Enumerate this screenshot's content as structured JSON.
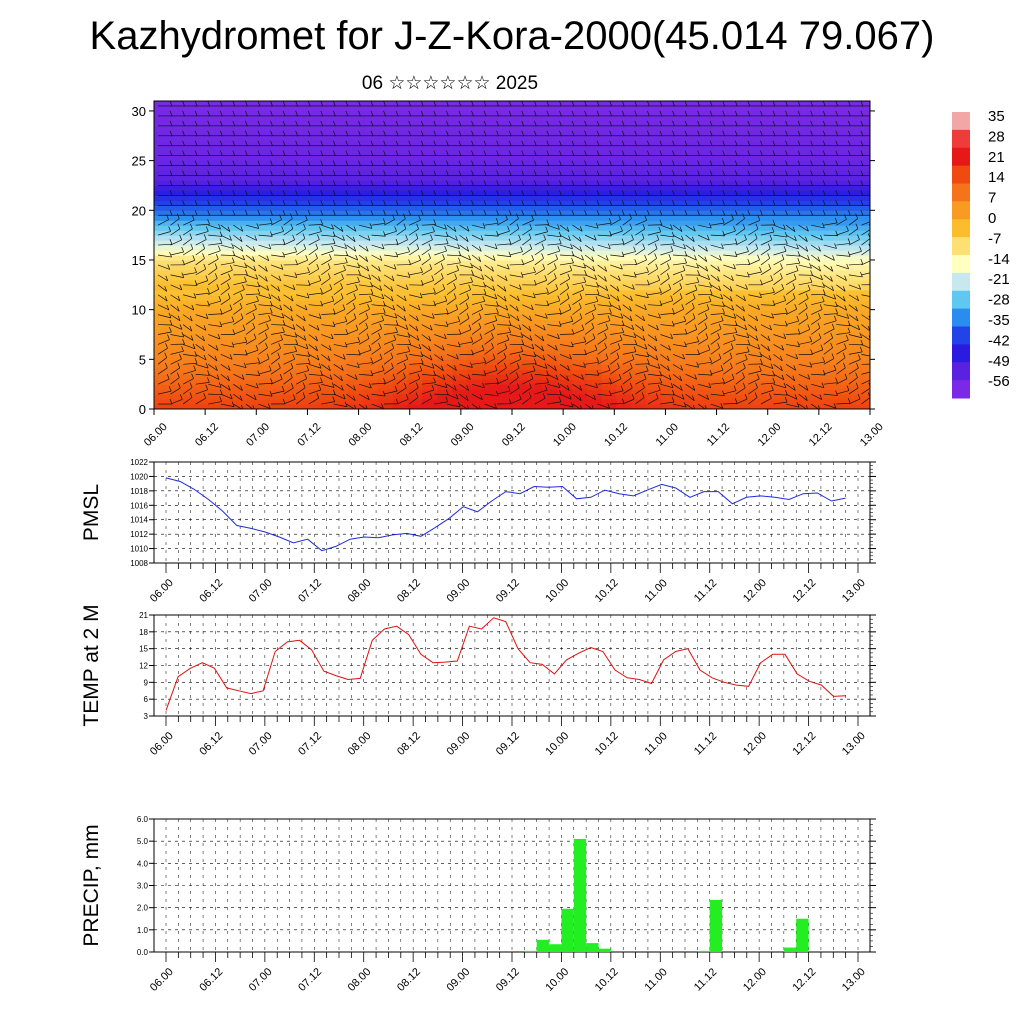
{
  "title": "Kazhydromet for J-Z-Kora-2000(45.014 79.067)",
  "subtitle": "06 ☆☆☆☆☆☆ 2025",
  "chart_data": [
    {
      "type": "heatmap",
      "title": "Kazhydromet for J-Z-Kora-2000(45.014 79.067)",
      "subtitle": "06 ☆☆☆☆☆☆ 2025",
      "x_ticks": [
        "06.00",
        "06.12",
        "07.00",
        "07.12",
        "08.00",
        "08.12",
        "09.00",
        "09.12",
        "10.00",
        "10.12",
        "11.00",
        "11.12",
        "12.00",
        "12.12",
        "13.00"
      ],
      "y_ticks": [
        0,
        5,
        10,
        15,
        20,
        25,
        30
      ],
      "ylim": [
        0,
        31
      ],
      "colorbar_labels": [
        35,
        28,
        21,
        14,
        7,
        0,
        -7,
        -14,
        -21,
        -28,
        -35,
        -42,
        -49,
        -56
      ],
      "colorbar_colors": [
        "#f2a6a6",
        "#f03b3b",
        "#e61818",
        "#f04a10",
        "#f5731a",
        "#f99a22",
        "#fbbd2c",
        "#fde074",
        "#ffffc0",
        "#c8e8f0",
        "#5ec8f0",
        "#2a8cf0",
        "#2244e6",
        "#2b1be0",
        "#5a22e0",
        "#7a2ae6"
      ],
      "profile": [
        {
          "height": 0,
          "temp": 14
        },
        {
          "height": 5,
          "temp": 7
        },
        {
          "height": 10,
          "temp": 2
        },
        {
          "height": 15,
          "temp": -8
        },
        {
          "height": 18,
          "temp": -22
        },
        {
          "height": 21,
          "temp": -40
        },
        {
          "height": 23,
          "temp": -52
        },
        {
          "height": 25,
          "temp": -56
        },
        {
          "height": 28,
          "temp": -58
        },
        {
          "height": 31,
          "temp": -60
        }
      ],
      "wind_barbs": true
    },
    {
      "type": "line",
      "ylabel": "PMSL",
      "ylim": [
        1008,
        1022
      ],
      "y_ticks": [
        1008,
        1010,
        1012,
        1014,
        1016,
        1018,
        1020,
        1022
      ],
      "x_ticks": [
        "06.00",
        "06.12",
        "07.00",
        "07.12",
        "08.00",
        "08.12",
        "09.00",
        "09.12",
        "10.00",
        "10.12",
        "11.00",
        "11.12",
        "12.00",
        "12.12",
        "13.00"
      ],
      "color": "#1f2be0",
      "values": [
        1019.8,
        1019.3,
        1018.2,
        1016.8,
        1015.2,
        1013.2,
        1012.8,
        1012.3,
        1011.6,
        1010.8,
        1011.3,
        1009.7,
        1010.3,
        1011.3,
        1011.6,
        1011.5,
        1011.9,
        1012.1,
        1011.7,
        1012.9,
        1014.2,
        1015.8,
        1015.1,
        1016.6,
        1017.9,
        1017.6,
        1018.6,
        1018.5,
        1018.6,
        1016.9,
        1017.1,
        1018.1,
        1017.6,
        1017.3,
        1018.1,
        1018.9,
        1018.4,
        1017.1,
        1017.9,
        1017.9,
        1016.2,
        1017.1,
        1017.3,
        1017.1,
        1016.8,
        1017.6,
        1017.7,
        1016.6,
        1017.0
      ]
    },
    {
      "type": "line",
      "ylabel": "TEMP at 2 M",
      "ylim": [
        3,
        21
      ],
      "y_ticks": [
        3,
        6,
        9,
        12,
        15,
        18,
        21
      ],
      "x_ticks": [
        "06.00",
        "06.12",
        "07.00",
        "07.12",
        "08.00",
        "08.12",
        "09.00",
        "09.12",
        "10.00",
        "10.12",
        "11.00",
        "11.12",
        "12.00",
        "12.12",
        "13.00"
      ],
      "color": "#e01010",
      "values": [
        4.0,
        10.0,
        11.5,
        12.5,
        11.5,
        8.0,
        7.5,
        7.0,
        7.5,
        14.5,
        16.2,
        16.5,
        14.8,
        11.0,
        10.2,
        9.5,
        9.7,
        16.5,
        18.5,
        19.0,
        17.5,
        14.0,
        12.5,
        12.6,
        12.8,
        19.0,
        18.5,
        20.5,
        19.8,
        15.0,
        12.5,
        12.2,
        10.5,
        13.0,
        14.2,
        15.2,
        14.5,
        11.2,
        9.8,
        9.5,
        8.8,
        13.0,
        14.5,
        15.0,
        11.2,
        9.8,
        9.0,
        8.5,
        8.3,
        12.5,
        14.0,
        14.0,
        10.5,
        9.2,
        8.5,
        6.5,
        6.6
      ]
    },
    {
      "type": "bar",
      "ylabel": "PRECIP, mm",
      "ylim": [
        0,
        6
      ],
      "y_ticks": [
        "0.0",
        "1.0",
        "2.0",
        "3.0",
        "4.0",
        "5.0",
        "6.0"
      ],
      "x_ticks": [
        "06.00",
        "06.12",
        "07.00",
        "07.12",
        "08.00",
        "08.12",
        "09.00",
        "09.12",
        "10.00",
        "10.12",
        "11.00",
        "11.12",
        "12.00",
        "12.12",
        "13.00"
      ],
      "color": "#22ee22",
      "bars": [
        {
          "slot": 29,
          "value": 0.05
        },
        {
          "slot": 30,
          "value": 0.55
        },
        {
          "slot": 31,
          "value": 0.35
        },
        {
          "slot": 32,
          "value": 1.95
        },
        {
          "slot": 33,
          "value": 5.1
        },
        {
          "slot": 34,
          "value": 0.4
        },
        {
          "slot": 35,
          "value": 0.15
        },
        {
          "slot": 43,
          "value": 0.05
        },
        {
          "slot": 44,
          "value": 2.35
        },
        {
          "slot": 50,
          "value": 0.2
        },
        {
          "slot": 51,
          "value": 1.5
        }
      ]
    }
  ]
}
